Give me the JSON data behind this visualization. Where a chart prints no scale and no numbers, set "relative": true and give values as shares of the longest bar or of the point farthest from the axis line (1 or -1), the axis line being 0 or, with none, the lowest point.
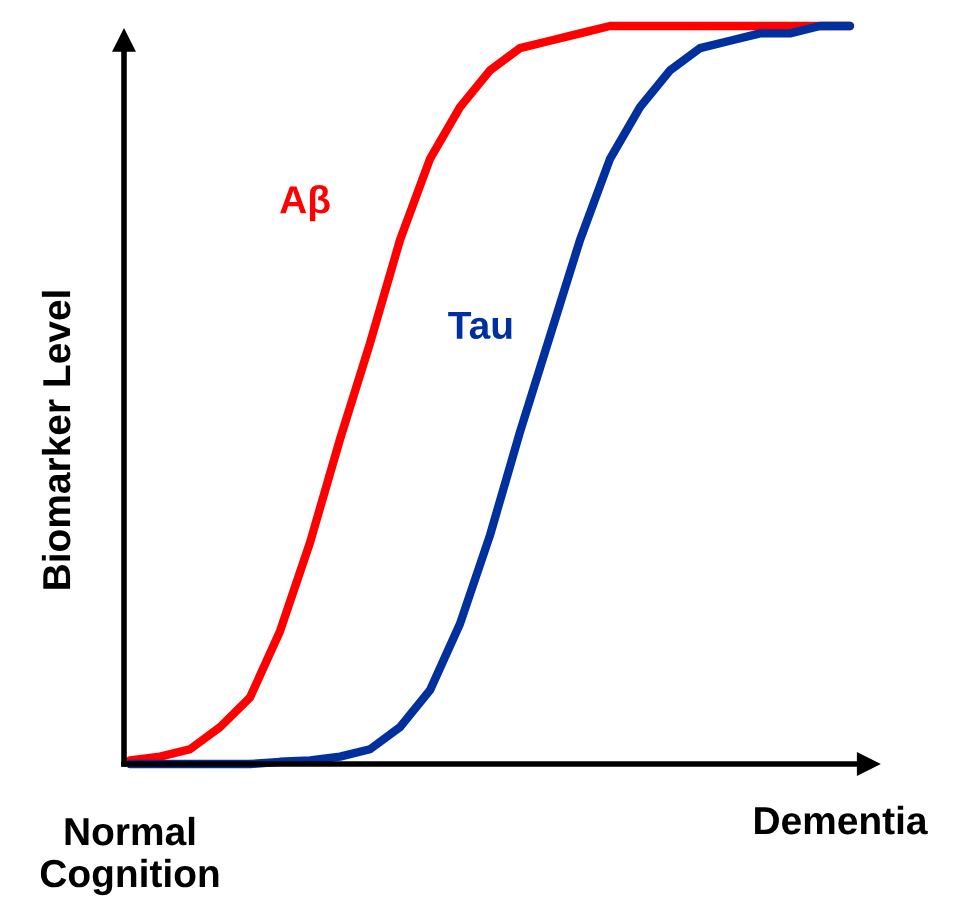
{
  "chart_data": {
    "type": "line",
    "relative": true,
    "ylabel": "Biomarker Level",
    "categories": [
      null,
      null,
      null,
      null,
      null,
      null,
      null,
      null,
      null,
      null,
      null,
      null,
      null,
      null,
      null,
      null,
      null,
      null,
      null,
      null,
      null,
      null,
      null,
      null,
      null
    ],
    "series": [
      {
        "name": "Aβ",
        "color": "#ff0000",
        "values": [
          0.005,
          0.01,
          0.02,
          0.05,
          0.09,
          0.18,
          0.3,
          0.44,
          0.57,
          0.71,
          0.82,
          0.89,
          0.94,
          0.97,
          0.98,
          0.99,
          1,
          1,
          1,
          1,
          1,
          1,
          1,
          1,
          1
        ]
      },
      {
        "name": "Tau",
        "color": "#00309e",
        "values": [
          0,
          0,
          0,
          0,
          0,
          0.003,
          0.005,
          0.01,
          0.02,
          0.05,
          0.1,
          0.19,
          0.31,
          0.45,
          0.58,
          0.71,
          0.82,
          0.89,
          0.94,
          0.97,
          0.98,
          0.99,
          0.99,
          1,
          1
        ]
      }
    ],
    "annotations": [
      "Normal\nCognition",
      "Dementia"
    ],
    "legend": false,
    "marker": "none",
    "line_style": "solid"
  }
}
